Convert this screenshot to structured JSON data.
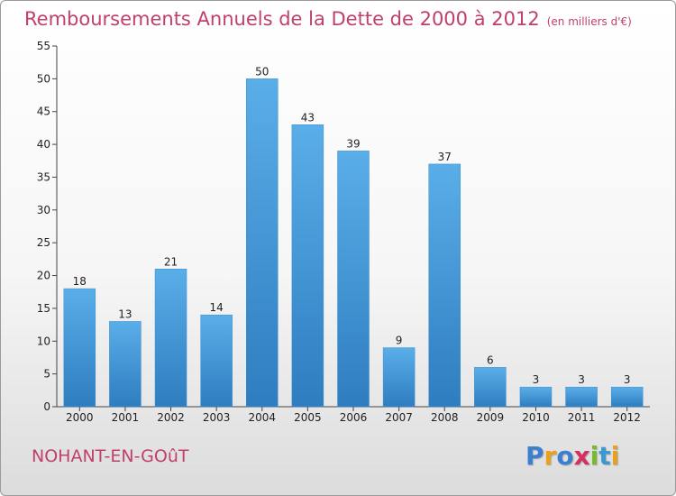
{
  "header": {
    "title": "Remboursements Annuels de la Dette de 2000 à 2012",
    "unit": "(en milliers d'€)"
  },
  "footer": {
    "city": "NOHANT-EN-GOûT",
    "logo": {
      "letters": [
        "P",
        "r",
        "o",
        "x",
        "i",
        "t",
        "i"
      ],
      "colors": [
        "#3a7fd0",
        "#e8a020",
        "#3a7fd0",
        "#d42f5e",
        "#7ab830",
        "#3a9ad0",
        "#e8a020"
      ]
    }
  },
  "chart_data": {
    "type": "bar",
    "title": "Remboursements Annuels de la Dette de 2000 à 2012",
    "xlabel": "",
    "ylabel": "",
    "categories": [
      "2000",
      "2001",
      "2002",
      "2003",
      "2004",
      "2005",
      "2006",
      "2007",
      "2008",
      "2009",
      "2010",
      "2011",
      "2012"
    ],
    "values": [
      18,
      13,
      21,
      14,
      50,
      43,
      39,
      9,
      37,
      6,
      3,
      3,
      3
    ],
    "ylim": [
      0,
      55
    ],
    "yticks": [
      0,
      5,
      10,
      15,
      20,
      25,
      30,
      35,
      40,
      45,
      50,
      55
    ],
    "grid": false,
    "colors": {
      "bar_top": "#5aaee8",
      "bar_bottom": "#2e7dc0",
      "bar_edge": "#3a8fd0"
    }
  }
}
